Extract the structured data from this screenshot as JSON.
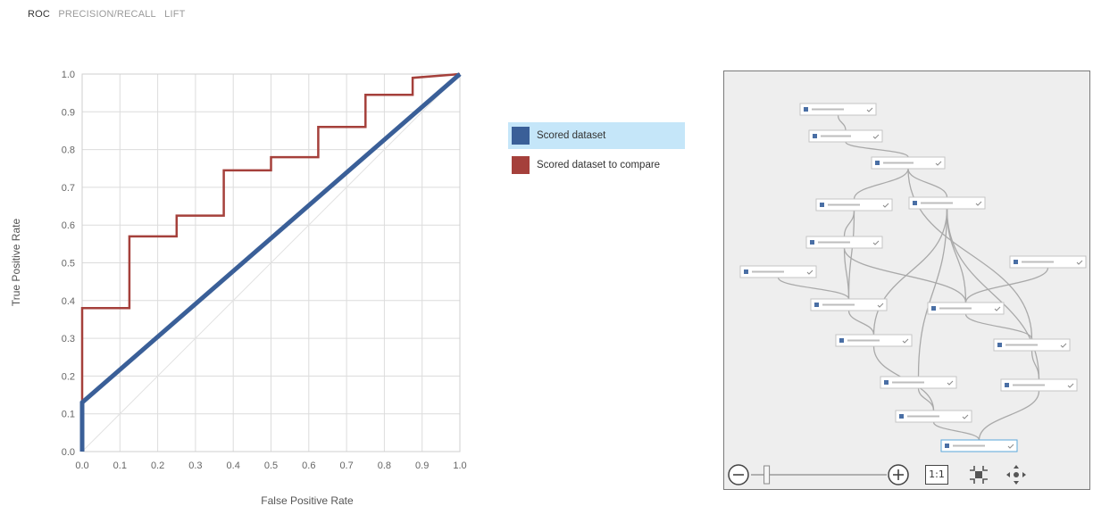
{
  "tabs": [
    {
      "label": "ROC",
      "active": true
    },
    {
      "label": "PRECISION/RECALL",
      "active": false
    },
    {
      "label": "LIFT",
      "active": false
    }
  ],
  "chart_data": {
    "type": "line",
    "xlabel": "False Positive Rate",
    "ylabel": "True Positive Rate",
    "xlim": [
      0,
      1
    ],
    "ylim": [
      0,
      1
    ],
    "xticks": [
      "0.0",
      "0.1",
      "0.2",
      "0.3",
      "0.4",
      "0.5",
      "0.6",
      "0.7",
      "0.8",
      "0.9",
      "1.0"
    ],
    "yticks": [
      "0.0",
      "0.1",
      "0.2",
      "0.3",
      "0.4",
      "0.5",
      "0.6",
      "0.7",
      "0.8",
      "0.9",
      "1.0"
    ],
    "grid": true,
    "legend_position": "right",
    "series": [
      {
        "name": "Scored dataset",
        "color": "#3a5f98",
        "selected": true,
        "x": [
          0,
          0,
          1
        ],
        "y": [
          0,
          0.13,
          1
        ]
      },
      {
        "name": "Scored dataset to compare",
        "color": "#a5403b",
        "selected": false,
        "x": [
          0,
          0,
          0.125,
          0.125,
          0.25,
          0.25,
          0.375,
          0.375,
          0.5,
          0.5,
          0.625,
          0.625,
          0.75,
          0.75,
          0.875,
          0.875,
          1.0
        ],
        "y": [
          0,
          0.38,
          0.38,
          0.57,
          0.57,
          0.625,
          0.625,
          0.745,
          0.745,
          0.78,
          0.78,
          0.86,
          0.86,
          0.945,
          0.945,
          0.99,
          1.0
        ]
      }
    ],
    "diagonal_reference": true
  },
  "thumbnail_toolbar": {
    "zoom_out_icon": "minus-circle-icon",
    "zoom_in_icon": "plus-circle-icon",
    "actual_size_label": "1:1",
    "fit_icon": "fit-to-screen-icon",
    "pan_icon": "pan-icon",
    "zoom_level": 0.1
  }
}
